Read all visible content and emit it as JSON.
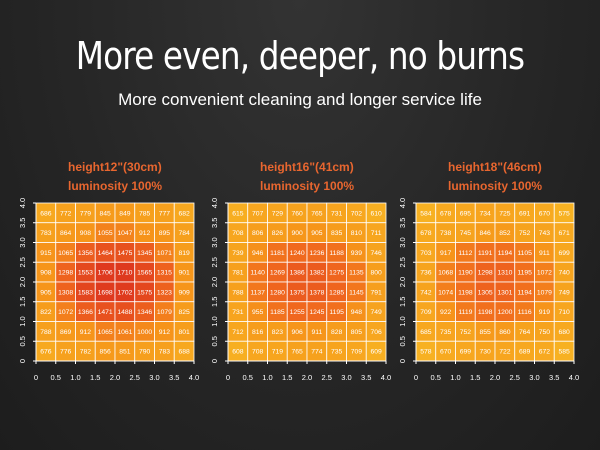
{
  "title": "More even, deeper, no burns",
  "subtitle": "More convenient cleaning and longer service life",
  "chart_data": [
    {
      "type": "heatmap",
      "height_label": "height12\"(30cm)",
      "luminosity_label": "luminosity 100%",
      "x_ticks": [
        "0",
        "0.5",
        "1.0",
        "1.5",
        "2.0",
        "2.5",
        "3.0",
        "3.5",
        "4.0"
      ],
      "y_ticks": [
        "4.0",
        "3.5",
        "3.0",
        "2.5",
        "2.0",
        "1.5",
        "1.0",
        "0.5",
        "0"
      ],
      "xlim": [
        0,
        4
      ],
      "ylim": [
        0,
        4
      ],
      "rows": [
        [
          686,
          772,
          779,
          845,
          849,
          785,
          777,
          682
        ],
        [
          783,
          864,
          908,
          1055,
          1047,
          912,
          895,
          784
        ],
        [
          915,
          1065,
          1356,
          1464,
          1475,
          1345,
          1071,
          819
        ],
        [
          908,
          1298,
          1553,
          1706,
          1710,
          1565,
          1315,
          901
        ],
        [
          905,
          1308,
          1583,
          1698,
          1702,
          1575,
          1323,
          909
        ],
        [
          822,
          1072,
          1366,
          1471,
          1488,
          1346,
          1079,
          825
        ],
        [
          788,
          869,
          912,
          1065,
          1061,
          1000,
          912,
          801
        ],
        [
          676,
          776,
          782,
          856,
          851,
          790,
          783,
          688
        ]
      ]
    },
    {
      "type": "heatmap",
      "height_label": "height16\"(41cm)",
      "luminosity_label": "luminosity 100%",
      "x_ticks": [
        "0",
        "0.5",
        "1.0",
        "1.5",
        "2.0",
        "2.5",
        "3.0",
        "3.5",
        "4.0"
      ],
      "y_ticks": [
        "4.0",
        "3.5",
        "3.0",
        "2.5",
        "2.0",
        "1.5",
        "1.0",
        "0.5",
        "0"
      ],
      "xlim": [
        0,
        4
      ],
      "ylim": [
        0,
        4
      ],
      "rows": [
        [
          615,
          707,
          729,
          760,
          765,
          731,
          702,
          610
        ],
        [
          708,
          806,
          826,
          900,
          905,
          835,
          810,
          711
        ],
        [
          739,
          946,
          1181,
          1240,
          1236,
          1188,
          939,
          746
        ],
        [
          781,
          1140,
          1269,
          1386,
          1382,
          1275,
          1135,
          800
        ],
        [
          788,
          1137,
          1280,
          1375,
          1378,
          1285,
          1145,
          791
        ],
        [
          731,
          955,
          1185,
          1255,
          1245,
          1195,
          948,
          749
        ],
        [
          712,
          816,
          823,
          906,
          911,
          828,
          805,
          706
        ],
        [
          608,
          708,
          719,
          765,
          774,
          735,
          709,
          609
        ]
      ]
    },
    {
      "type": "heatmap",
      "height_label": "height18\"(46cm)",
      "luminosity_label": "luminosity 100%",
      "x_ticks": [
        "0",
        "0.5",
        "1.0",
        "1.5",
        "2.0",
        "2.5",
        "3.0",
        "3.5",
        "4.0"
      ],
      "y_ticks": [
        "4.0",
        "3.5",
        "3.0",
        "2.5",
        "2.0",
        "1.5",
        "1.0",
        "0.5",
        "0"
      ],
      "xlim": [
        0,
        4
      ],
      "ylim": [
        0,
        4
      ],
      "rows": [
        [
          584,
          678,
          695,
          734,
          725,
          691,
          670,
          575
        ],
        [
          678,
          738,
          745,
          846,
          852,
          752,
          743,
          671
        ],
        [
          703,
          917,
          1112,
          1191,
          1194,
          1105,
          911,
          699
        ],
        [
          736,
          1068,
          1190,
          1298,
          1310,
          1195,
          1072,
          740
        ],
        [
          742,
          1074,
          1198,
          1305,
          1301,
          1194,
          1079,
          749
        ],
        [
          709,
          922,
          1119,
          1198,
          1200,
          1116,
          919,
          710
        ],
        [
          685,
          735,
          752,
          855,
          860,
          764,
          750,
          680
        ],
        [
          578,
          670,
          699,
          730,
          722,
          689,
          672,
          585
        ]
      ]
    }
  ]
}
